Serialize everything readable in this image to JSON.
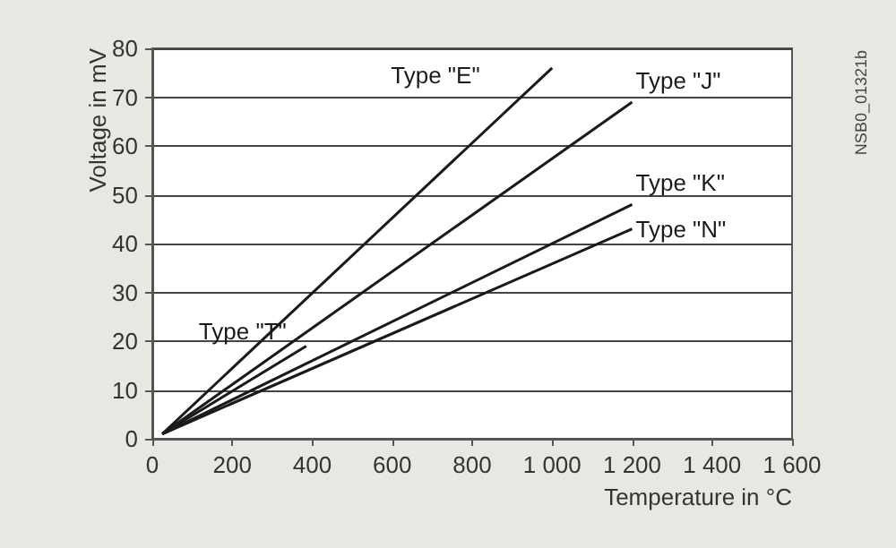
{
  "chart_data": {
    "type": "line",
    "xlabel": "Temperature in °C",
    "ylabel": "Voltage in mV",
    "xlim": [
      0,
      1600
    ],
    "xticks": [
      0,
      200,
      400,
      600,
      800,
      {
        "value": 1000,
        "label": "1 000"
      },
      {
        "value": 1200,
        "label": "1 200"
      },
      {
        "value": 1400,
        "label": "1 400"
      },
      {
        "value": 1600,
        "label": "1 600"
      }
    ],
    "ylim": [
      0,
      80
    ],
    "yticks": [
      0,
      10,
      20,
      30,
      40,
      50,
      60,
      70,
      80
    ],
    "grid": "y",
    "legend": false,
    "marker": "none",
    "line_style": "solid",
    "series": [
      {
        "name": "Type \"E\"",
        "color": "#1a1a1a",
        "x": [
          25,
          1000
        ],
        "values": [
          1,
          76
        ]
      },
      {
        "name": "Type \"J\"",
        "color": "#1a1a1a",
        "x": [
          25,
          1200
        ],
        "values": [
          1,
          69
        ]
      },
      {
        "name": "Type \"K\"",
        "color": "#1a1a1a",
        "x": [
          25,
          1200
        ],
        "values": [
          1,
          48
        ]
      },
      {
        "name": "Type \"N\"",
        "color": "#1a1a1a",
        "x": [
          25,
          1200
        ],
        "values": [
          1,
          43
        ]
      },
      {
        "name": "Type \"T\"",
        "color": "#1a1a1a",
        "x": [
          25,
          385
        ],
        "values": [
          1,
          19
        ]
      }
    ],
    "annotations": [
      "NSB0_01321b"
    ]
  }
}
